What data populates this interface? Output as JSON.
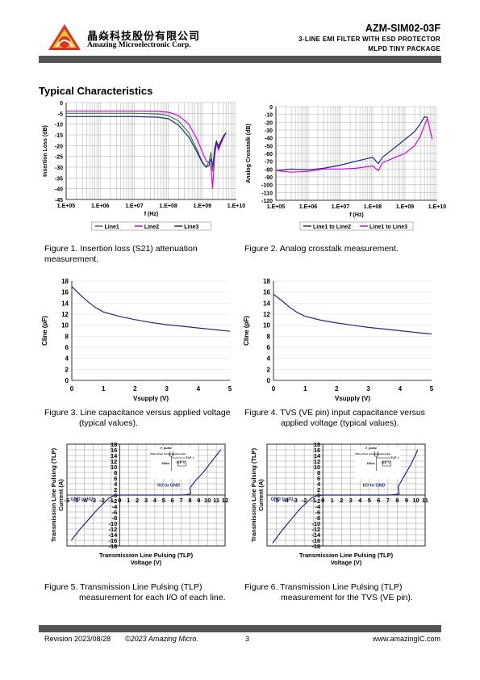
{
  "header": {
    "company_cn": "晶焱科技股份有限公司",
    "company_en": "Amazing Microelectronic Corp.",
    "part_number": "AZM-SIM02-03F",
    "subtitle_line1": "3-LINE EMI FILTER WITH ESD PROTECTOR",
    "subtitle_line2": "MLPD TINY PACKAGE"
  },
  "section_title": "Typical Characteristics",
  "captions": {
    "fig1a": "Figure 1.   Insertion loss (S21) attenuation",
    "fig1b": "measurement.",
    "fig2": "Figure 2.   Analog crosstalk measurement.",
    "fig3a": "Figure 3. Line capacitance versus applied voltage",
    "fig3b": "(typical values).",
    "fig4a": "Figure 4. TVS (VE pin) input capacitance versus",
    "fig4b": "applied voltage (typical values).",
    "fig5a": "Figure 5. Transmission Line Pulsing (TLP)",
    "fig5b": "measurement for each I/O of each line.",
    "fig6a": "Figure 6. Transmission Line Pulsing (TLP)",
    "fig6b": "measurement for the TVS (VE pin)."
  },
  "footer": {
    "revision": "Revision 2023/08/28",
    "copyright": "©2023 Amazing Micro.",
    "page": "3",
    "website": "www.amazingIC.com"
  },
  "chart_data": [
    {
      "id": "fig1",
      "type": "line",
      "xlabel": "f (Hz)",
      "ylabel": "Insertion Loss (dB)",
      "xscale": "log",
      "xlim": [
        100000,
        10000000000
      ],
      "ylim": [
        -45,
        0
      ],
      "xticks": [
        "1.E+05",
        "1.E+06",
        "1.E+07",
        "1.E+08",
        "1.E+09",
        "1.E+10"
      ],
      "yticks": [
        "0",
        "-5",
        "-10",
        "-15",
        "-20",
        "-25",
        "-30",
        "-35",
        "-40",
        "-45"
      ],
      "legend_position": "bottom",
      "series": [
        {
          "name": "Line1",
          "color": "#2e8b2e",
          "x": [
            100000,
            1000000,
            10000000,
            50000000,
            100000000,
            200000000,
            400000000,
            700000000,
            1000000000,
            1300000000,
            1600000000,
            1800000000,
            2000000000,
            2300000000,
            2600000000,
            3000000000,
            4000000000,
            5000000000
          ],
          "y": [
            -5,
            -5,
            -5,
            -5.3,
            -6,
            -8.5,
            -14,
            -22,
            -27.5,
            -30,
            -27,
            -23,
            -32,
            -21,
            -18,
            -20,
            -16,
            -14
          ]
        },
        {
          "name": "Line2",
          "color": "#e000e0",
          "x": [
            100000,
            1000000,
            10000000,
            50000000,
            100000000,
            200000000,
            400000000,
            700000000,
            1000000000,
            1300000000,
            1600000000,
            1800000000,
            2000000000,
            2300000000,
            2600000000,
            3000000000,
            4000000000,
            5000000000
          ],
          "y": [
            -4,
            -4,
            -4,
            -4.1,
            -4.5,
            -6,
            -10,
            -17,
            -23,
            -27,
            -28,
            -30,
            -40,
            -25,
            -19,
            -22,
            -17,
            -14
          ]
        },
        {
          "name": "Line3",
          "color": "#1a2a8a",
          "x": [
            100000,
            1000000,
            10000000,
            50000000,
            100000000,
            200000000,
            400000000,
            700000000,
            1000000000,
            1300000000,
            1600000000,
            1800000000,
            2000000000,
            2300000000,
            2600000000,
            3000000000,
            4000000000,
            5000000000
          ],
          "y": [
            -6.5,
            -6.5,
            -6.5,
            -6.8,
            -7.5,
            -10.5,
            -16,
            -23,
            -28,
            -30,
            -29,
            -26,
            -30,
            -22,
            -18,
            -21,
            -16,
            -14
          ]
        }
      ]
    },
    {
      "id": "fig2",
      "type": "line",
      "xlabel": "f (Hz)",
      "ylabel": "Analog Crosstalk (dB)",
      "xscale": "log",
      "xlim": [
        100000,
        10000000000
      ],
      "ylim": [
        -120,
        0
      ],
      "xticks": [
        "1.E+05",
        "1.E+06",
        "1.E+07",
        "1.E+08",
        "1.E+09",
        "1.E+10"
      ],
      "yticks": [
        "0",
        "-10",
        "-20",
        "-30",
        "-40",
        "-50",
        "-60",
        "-70",
        "-80",
        "-90",
        "-100",
        "-110",
        "-120"
      ],
      "legend_position": "bottom",
      "series": [
        {
          "name": "Line1 to Line2",
          "color": "#1a2a8a",
          "x": [
            100000,
            300000,
            1000000,
            3000000,
            10000000,
            30000000,
            100000000,
            150000000,
            200000000,
            500000000,
            1000000000,
            2000000000,
            3000000000,
            4000000000,
            5000000000
          ],
          "y": [
            -82,
            -80,
            -81,
            -79,
            -75,
            -70,
            -65,
            -73,
            -65,
            -52,
            -42,
            -32,
            -22,
            -13,
            -14
          ]
        },
        {
          "name": "Line1 to Line3",
          "color": "#e000e0",
          "x": [
            100000,
            300000,
            1000000,
            3000000,
            10000000,
            30000000,
            100000000,
            150000000,
            200000000,
            500000000,
            1000000000,
            2000000000,
            3000000000,
            4000000000,
            5000000000,
            6000000000,
            7000000000
          ],
          "y": [
            -82,
            -84,
            -83,
            -80,
            -80,
            -79,
            -76,
            -82,
            -72,
            -65,
            -60,
            -50,
            -38,
            -24,
            -15,
            -30,
            -42
          ]
        }
      ]
    },
    {
      "id": "fig3",
      "type": "line",
      "xlabel": "Vsupply (V)",
      "ylabel": "Cline (pF)",
      "xlim": [
        0,
        5
      ],
      "ylim": [
        0,
        18
      ],
      "xticks": [
        "0",
        "1",
        "2",
        "3",
        "4",
        "5"
      ],
      "yticks": [
        "0",
        "2",
        "4",
        "6",
        "8",
        "10",
        "12",
        "14",
        "16",
        "18"
      ],
      "series": [
        {
          "color": "#1a2a8a",
          "x": [
            0,
            0.25,
            0.5,
            0.75,
            1,
            1.5,
            2,
            2.5,
            3,
            3.5,
            4,
            4.5,
            5
          ],
          "y": [
            17,
            15.6,
            14.3,
            13.2,
            12.4,
            11.6,
            11,
            10.5,
            10.1,
            9.8,
            9.5,
            9.2,
            8.9
          ]
        }
      ]
    },
    {
      "id": "fig4",
      "type": "line",
      "xlabel": "Vsupply (V)",
      "ylabel": "Cline (pF)",
      "xlim": [
        0,
        5
      ],
      "ylim": [
        0,
        18
      ],
      "xticks": [
        "0",
        "1",
        "2",
        "3",
        "4",
        "5"
      ],
      "yticks": [
        "0",
        "2",
        "4",
        "6",
        "8",
        "10",
        "12",
        "14",
        "16",
        "18"
      ],
      "series": [
        {
          "color": "#1a2a8a",
          "x": [
            0,
            0.25,
            0.5,
            0.75,
            1,
            1.5,
            2,
            2.5,
            3,
            3.5,
            4,
            4.5,
            5
          ],
          "y": [
            15.6,
            14.5,
            13.3,
            12.3,
            11.6,
            10.9,
            10.4,
            10,
            9.6,
            9.3,
            9,
            8.7,
            8.4
          ]
        }
      ]
    },
    {
      "id": "fig5",
      "type": "line",
      "xlabel": "Transmission Line Pulsing (TLP) Voltage (V)",
      "ylabel": "Transmission Line Pulsing (TLP) Current (A)",
      "xlim": [
        -6,
        12
      ],
      "ylim": [
        -18,
        18
      ],
      "xticks": [
        "-6",
        "-5",
        "-4",
        "-3",
        "-2",
        "-1",
        "0",
        "1",
        "2",
        "3",
        "4",
        "5",
        "6",
        "7",
        "8",
        "9",
        "10",
        "11",
        "12"
      ],
      "yticks": [
        "18",
        "16",
        "14",
        "12",
        "10",
        "8",
        "6",
        "4",
        "2",
        "0",
        "-2",
        "-4",
        "-6",
        "-8",
        "-10",
        "-12",
        "-14",
        "-16",
        "-18"
      ],
      "annotations": [
        "GND to I/O",
        "I/O to GND",
        "V_pulse",
        "Pulse from a transmission line",
        "TLP_I",
        "TLP_V",
        "100ns"
      ],
      "series": [
        {
          "name": "I/O to GND",
          "color": "#1a2a8a",
          "x": [
            0,
            1,
            2,
            3,
            4,
            5,
            6,
            7,
            7.5,
            7.9,
            8.1,
            8.0,
            8.6,
            9.5,
            10.5,
            11.5
          ],
          "y": [
            0,
            0,
            0,
            0,
            0,
            0,
            0,
            0,
            0.1,
            0.3,
            0.6,
            2.5,
            5,
            8,
            12,
            16
          ]
        },
        {
          "name": "GND to I/O",
          "color": "#1a2a8a",
          "x": [
            0,
            -0.7,
            -1.2,
            -2.5,
            -3.5,
            -4.5,
            -5.5
          ],
          "y": [
            0,
            -0.3,
            -1,
            -5,
            -8.5,
            -12,
            -16
          ]
        }
      ]
    },
    {
      "id": "fig6",
      "type": "line",
      "xlabel": "Transmission Line Pulsing (TLP) Voltage (V)",
      "ylabel": "Transmission Line Pulsing (TLP) Current (A)",
      "xlim": [
        -6,
        11
      ],
      "ylim": [
        -18,
        18
      ],
      "xticks": [
        "-5",
        "-4",
        "-3",
        "-2",
        "-1",
        "0",
        "1",
        "2",
        "3",
        "4",
        "5",
        "6",
        "7",
        "8",
        "9",
        "10",
        "11"
      ],
      "yticks": [
        "18",
        "16",
        "14",
        "12",
        "10",
        "8",
        "6",
        "4",
        "2",
        "0",
        "-2",
        "-4",
        "-6",
        "-8",
        "-10",
        "-12",
        "-14",
        "-16",
        "-18"
      ],
      "annotations": [
        "GND to I/O",
        "I/O to GND",
        "V_pulse",
        "Pulse from a transmission line",
        "TLP_I",
        "TLP_V",
        "100ns"
      ],
      "series": [
        {
          "name": "I/O to GND",
          "color": "#1a2a8a",
          "x": [
            0,
            1,
            2,
            3,
            4,
            5,
            6,
            7,
            7.6,
            8.2,
            8.1,
            8.8,
            9.5,
            10.2
          ],
          "y": [
            0,
            0,
            0,
            0,
            0,
            0,
            0,
            0,
            0.1,
            0.4,
            3,
            7,
            11,
            16
          ]
        },
        {
          "name": "GND to I/O",
          "color": "#1a2a8a",
          "x": [
            0,
            -0.7,
            -1.2,
            -2.5,
            -3.5,
            -4.5,
            -5.4
          ],
          "y": [
            0,
            -0.3,
            -1,
            -5,
            -9,
            -13,
            -17
          ]
        }
      ]
    }
  ]
}
